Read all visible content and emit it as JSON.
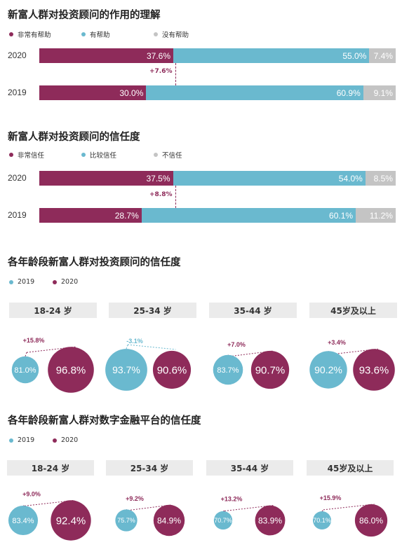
{
  "colors": {
    "dark": "#8e2b5a",
    "light": "#6ab9cf",
    "gray": "#c4c4c4"
  },
  "chart_data": [
    {
      "type": "bar",
      "title": "新富人群对投资顾问的作用的理解",
      "legend": [
        "非常有帮助",
        "有帮助",
        "没有帮助"
      ],
      "categories": [
        "2020",
        "2019"
      ],
      "series": [
        {
          "name": "非常有帮助",
          "values": [
            37.6,
            30.0
          ],
          "labels": [
            "37.6%",
            "30.0%"
          ]
        },
        {
          "name": "有帮助",
          "values": [
            55.0,
            60.9
          ],
          "labels": [
            "55.0%",
            "60.9%"
          ]
        },
        {
          "name": "没有帮助",
          "values": [
            7.4,
            9.1
          ],
          "labels": [
            "7.4%",
            "9.1%"
          ]
        }
      ],
      "change": "+7.6%"
    },
    {
      "type": "bar",
      "title": "新富人群对投资顾问的信任度",
      "legend": [
        "非常信任",
        "比较信任",
        "不信任"
      ],
      "categories": [
        "2020",
        "2019"
      ],
      "series": [
        {
          "name": "非常信任",
          "values": [
            37.5,
            28.7
          ],
          "labels": [
            "37.5%",
            "28.7%"
          ]
        },
        {
          "name": "比较信任",
          "values": [
            54.0,
            60.1
          ],
          "labels": [
            "54.0%",
            "60.1%"
          ]
        },
        {
          "name": "不信任",
          "values": [
            8.5,
            11.2
          ],
          "labels": [
            "8.5%",
            "11.2%"
          ]
        }
      ],
      "change": "+8.8%"
    },
    {
      "type": "scatter",
      "title": "各年龄段新富人群对投资顾问的信任度",
      "legend": [
        "2019",
        "2020"
      ],
      "categories": [
        "18-24 岁",
        "25-34 岁",
        "35-44 岁",
        "45岁及以上"
      ],
      "series": [
        {
          "name": "2019",
          "values": [
            81.0,
            93.7,
            83.7,
            90.2
          ],
          "labels": [
            "81.0%",
            "93.7%",
            "83.7%",
            "90.2%"
          ]
        },
        {
          "name": "2020",
          "values": [
            96.8,
            90.6,
            90.7,
            93.6
          ],
          "labels": [
            "96.8%",
            "90.6%",
            "90.7%",
            "93.6%"
          ]
        }
      ],
      "changes": [
        "+15.8%",
        "-3.1%",
        "+7.0%",
        "+3.4%"
      ]
    },
    {
      "type": "scatter",
      "title": "各年龄段新富人群对数字金融平台的信任度",
      "legend": [
        "2019",
        "2020"
      ],
      "categories": [
        "18-24 岁",
        "25-34 岁",
        "35-44 岁",
        "45岁及以上"
      ],
      "series": [
        {
          "name": "2019",
          "values": [
            83.4,
            75.7,
            70.7,
            70.1
          ],
          "labels": [
            "83.4%",
            "75.7%",
            "70.7%",
            "70.1%"
          ]
        },
        {
          "name": "2020",
          "values": [
            92.4,
            84.9,
            83.9,
            86.0
          ],
          "labels": [
            "92.4%",
            "84.9%",
            "83.9%",
            "86.0%"
          ]
        }
      ],
      "changes": [
        "+9.0%",
        "+9.2%",
        "+13.2%",
        "+15.9%"
      ]
    }
  ]
}
